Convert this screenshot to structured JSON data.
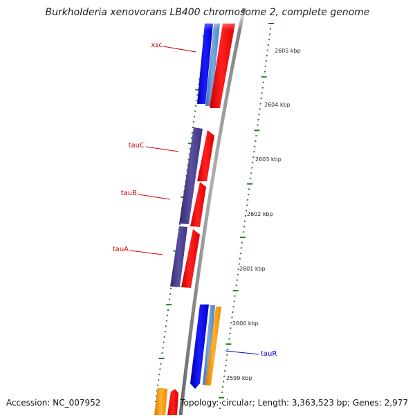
{
  "title": "Burkholderia xenovorans LB400 chromosome 2, complete genome",
  "accession": "Accession: NC_007952",
  "topology": "Topology: circular; Length: 3,363,523 bp; Genes: 2,977",
  "colors": {
    "backbone": "#8a8a8a",
    "tick": "#1e7a1e",
    "forward_gene": "#ff0000",
    "reverse_gene_blue": "#0000ee",
    "reverse_gene_steel": "#5a8fcf",
    "operon_purple": "#4a3f8c",
    "orange_gene": "#ff9900",
    "label_red": "#cc0000",
    "label_blue": "#0000cc"
  },
  "scale_labels": [
    "2605 kbp",
    "2604 kbp",
    "2603 kbp",
    "2602 kbp",
    "2601 kbp",
    "2600 kbp",
    "2599 kbp"
  ],
  "gene_labels": [
    {
      "text": "xsc",
      "color": "red"
    },
    {
      "text": "tauC",
      "color": "red"
    },
    {
      "text": "tauB",
      "color": "red"
    },
    {
      "text": "tauA",
      "color": "red"
    },
    {
      "text": "tauR",
      "color": "blue"
    }
  ]
}
